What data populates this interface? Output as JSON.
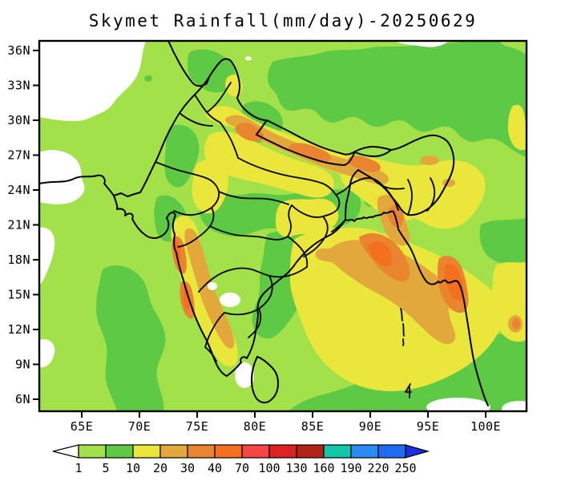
{
  "title": "Skymet Rainfall(mm/day)-20250629",
  "chart_data": {
    "type": "heatmap",
    "variant": "filled contour rainfall map (GrADS style) over India and neighbours",
    "title": "Skymet Rainfall(mm/day)-20250629",
    "units": "mm/day",
    "date_label": "20250629",
    "grid": "off",
    "x_axis": {
      "tick_labels": [
        "65E",
        "70E",
        "75E",
        "80E",
        "85E",
        "90E",
        "95E",
        "100E"
      ],
      "approx_range_deg_east": [
        61,
        103.5
      ]
    },
    "y_axis": {
      "tick_labels": [
        "36N",
        "33N",
        "30N",
        "27N",
        "24N",
        "21N",
        "18N",
        "15N",
        "12N",
        "9N",
        "6N"
      ],
      "approx_range_deg_north": [
        5,
        37
      ]
    },
    "legend": {
      "position": "bottom",
      "levels": [
        "1",
        "5",
        "10",
        "20",
        "30",
        "40",
        "70",
        "100",
        "130",
        "160",
        "190",
        "220",
        "250"
      ],
      "segment_colors": [
        "#a2e14a",
        "#5ec944",
        "#eae63c",
        "#e2a83b",
        "#e98530",
        "#f4701f",
        "#f54545",
        "#dd2222",
        "#b22218",
        "#14c5a8",
        "#2a8cf2",
        "#1e6cf0"
      ],
      "below_min_color": "#ffffff",
      "above_max_color": "#1b2fe0"
    },
    "map_features": [
      {
        "area": "Pakistan / Afghanistan / far NW (upper-left)",
        "value_mm_day": "< 1 (white)"
      },
      {
        "area": "Background seas, Tibet and most of peninsula",
        "value_mm_day": "1-10 (light/medium green)"
      },
      {
        "area": "Himalayan foothill band (~28-31N, 73-90E)",
        "value_mm_day": "10-40 (yellow-orange diagonal strip)"
      },
      {
        "area": "Indo-Gangetic plain, NE India and Bangladesh",
        "value_mm_day": "10-20 with 20-40 pockets near Chittagong"
      },
      {
        "area": "West coast / Western Ghats narrow strip",
        "value_mm_day": "10-70 (yellow-tan-orange band with 40-70 cores)"
      },
      {
        "area": "Bay of Bengal",
        "value_mm_day": "10-30 broad; 30-70 cores near Rakhine and Gulf of Martaban"
      },
      {
        "area": "Interior Karnataka spots, Palk Strait, seas SE of Sri Lanka",
        "value_mm_day": "< 1 (white)"
      }
    ]
  },
  "map_palette": {
    "lt1": "#ffffff",
    "r1_5": "#a2e14a",
    "r5_10": "#5ec944",
    "r10_20": "#eae63c",
    "r20_30": "#e2a83b",
    "r30_40": "#e98530",
    "r40_70": "#f4701f",
    "r70_100": "#f54545",
    "r100_130": "#dd2222",
    "r130_160": "#b22218",
    "r160_190": "#14c5a8",
    "r190_220": "#2a8cf2",
    "r220_250": "#1e6cf0",
    "gt250": "#1b2fe0",
    "boundary": "#000000",
    "frame": "#000000"
  }
}
